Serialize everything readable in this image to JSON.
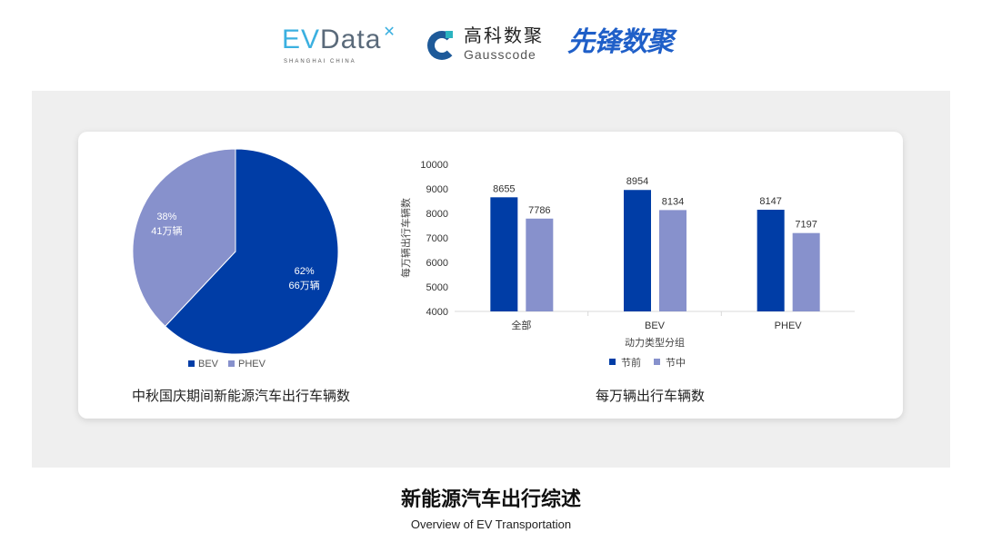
{
  "logos": {
    "evdata": "EVData",
    "evdata_sub": "SHANGHAI CHINA",
    "gausscode_cn": "高科数聚",
    "gausscode_en": "Gausscode",
    "xianfeng": "先锋数聚"
  },
  "colors": {
    "before": "#003da6",
    "during": "#8791cc",
    "panel": "#efefef"
  },
  "chart_data": [
    {
      "type": "pie",
      "title": "中秋国庆期间新能源汽车出行车辆数",
      "slices": [
        {
          "name": "BEV",
          "percent": 62,
          "label_pct": "62%",
          "label_val": "66万辆"
        },
        {
          "name": "PHEV",
          "percent": 38,
          "label_pct": "38%",
          "label_val": "41万辆"
        }
      ],
      "legend": "bottom"
    },
    {
      "type": "bar",
      "title": "每万辆出行车辆数",
      "xlabel": "动力类型分组",
      "ylabel": "每万辆出行车辆数",
      "categories": [
        "全部",
        "BEV",
        "PHEV"
      ],
      "series": [
        {
          "name": "节前",
          "values": [
            8655,
            8954,
            8147
          ]
        },
        {
          "name": "节中",
          "values": [
            7786,
            8134,
            7197
          ]
        }
      ],
      "ylim": [
        4000,
        10000
      ],
      "yticks": [
        4000,
        5000,
        6000,
        7000,
        8000,
        9000,
        10000
      ],
      "grid": false,
      "legend": "bottom"
    }
  ],
  "footer": {
    "title": "新能源汽车出行综述",
    "subtitle": "Overview of EV Transportation"
  }
}
